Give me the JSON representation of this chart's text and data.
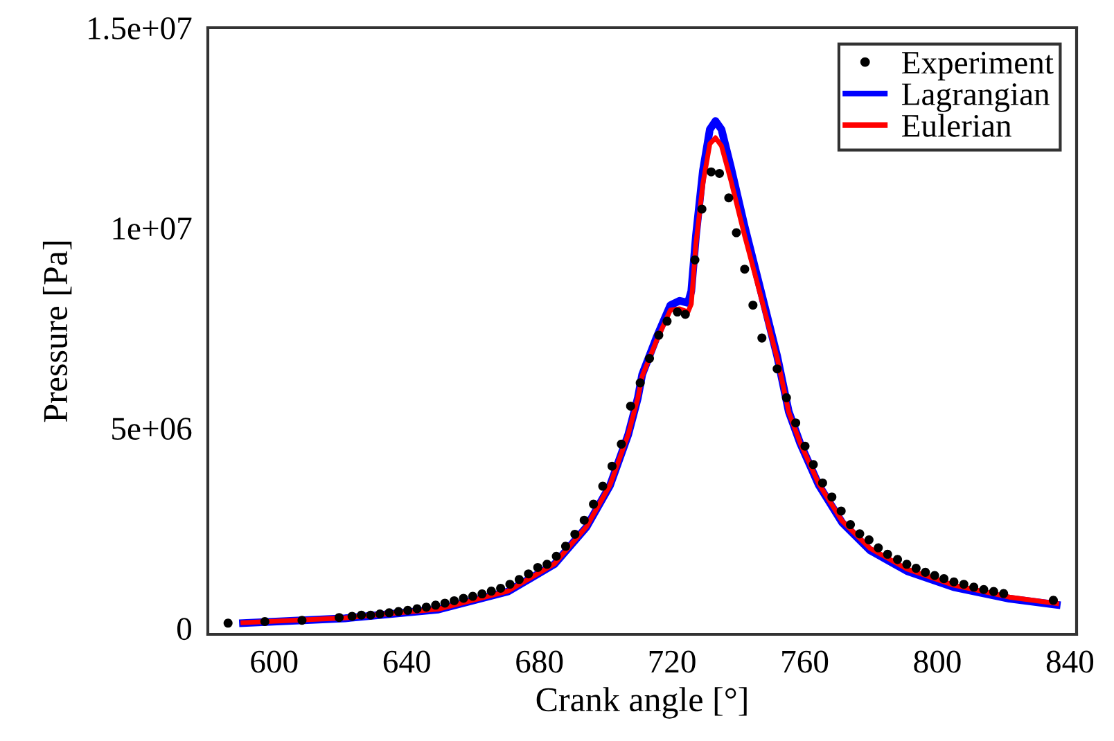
{
  "chart_data": {
    "type": "line",
    "xlabel": "Crank angle [°]",
    "ylabel": "Pressure [Pa]",
    "xlim": [
      580,
      842
    ],
    "xticks": [
      600,
      640,
      680,
      720,
      760,
      800,
      840
    ],
    "ylim": [
      -150000,
      15000000
    ],
    "yticks": [
      {
        "value": 0,
        "label": "0"
      },
      {
        "value": 5000000,
        "label": "5e+06"
      },
      {
        "value": 10000000,
        "label": "1e+07"
      },
      {
        "value": 15000000,
        "label": "1.5e+07"
      }
    ],
    "grid": false,
    "legend": "top right",
    "series": [
      {
        "name": "Experiment",
        "type": "scatter",
        "color": "#000000",
        "marker": "circle",
        "x": [
          586.1,
          597.2,
          608.4,
          619.6,
          623.5,
          626.3,
          629.1,
          631.9,
          634.7,
          637.5,
          640.3,
          643.1,
          645.9,
          648.7,
          651.5,
          654.3,
          657.1,
          659.9,
          662.7,
          665.5,
          668.3,
          671.1,
          673.9,
          676.7,
          679.5,
          682.3,
          685.1,
          687.9,
          690.7,
          693.5,
          696.3,
          699.1,
          701.9,
          704.7,
          707.5,
          710.4,
          713.2,
          716.0,
          718.5,
          721.6,
          724.0,
          726.9,
          729.0,
          731.8,
          734.3,
          737.1,
          739.4,
          741.9,
          744.4,
          747.1,
          751.7,
          754.5,
          757.3,
          760.1,
          762.6,
          765.4,
          768.2,
          771.0,
          773.8,
          776.6,
          779.4,
          782.2,
          785.0,
          788.0,
          790.8,
          793.6,
          796.4,
          799.2,
          802.0,
          805.0,
          808.0,
          811.0,
          814.0,
          817.0,
          820.0,
          835.0
        ],
        "values": [
          130000,
          170000,
          200000,
          270000,
          300000,
          330000,
          330000,
          360000,
          390000,
          420000,
          450000,
          490000,
          530000,
          580000,
          630000,
          690000,
          750000,
          800000,
          860000,
          930000,
          1000000,
          1100000,
          1220000,
          1360000,
          1520000,
          1600000,
          1800000,
          2050000,
          2350000,
          2700000,
          3100000,
          3550000,
          4050000,
          4600000,
          5550000,
          6130000,
          6740000,
          7320000,
          7670000,
          7900000,
          7840000,
          9200000,
          10470000,
          11400000,
          11360000,
          10750000,
          9880000,
          8970000,
          8070000,
          7250000,
          6480000,
          5760000,
          5130000,
          4550000,
          4090000,
          3630000,
          3280000,
          2930000,
          2590000,
          2360000,
          2210000,
          2010000,
          1850000,
          1720000,
          1600000,
          1500000,
          1400000,
          1320000,
          1240000,
          1160000,
          1100000,
          1030000,
          970000,
          920000,
          870000,
          700000
        ]
      },
      {
        "name": "Lagrangian",
        "color": "#0000ff",
        "marker": "none",
        "line_style": "solid",
        "x": [
          590.6,
          621.4,
          649.5,
          670.5,
          684.5,
          694.2,
          701.3,
          706.8,
          709.7,
          711.0,
          715.3,
          719.5,
          722.3,
          724.8,
          725.8,
          727.2,
          729.3,
          731.4,
          733.1,
          734.9,
          737.7,
          741.9,
          746.1,
          751.7,
          755.2,
          758.7,
          764.3,
          771.3,
          779.7,
          790.9,
          804.9,
          821.7,
          836.0
        ],
        "values": [
          130000,
          250000,
          470000,
          920000,
          1600000,
          2530000,
          3570000,
          4840000,
          5760000,
          6340000,
          7260000,
          8070000,
          8180000,
          8130000,
          8420000,
          9800000,
          11420000,
          12460000,
          12670000,
          12460000,
          11530000,
          10030000,
          8650000,
          6800000,
          5410000,
          4610000,
          3570000,
          2640000,
          1950000,
          1430000,
          1030000,
          740000,
          590000
        ]
      },
      {
        "name": "Eulerian",
        "color": "#ff0000",
        "marker": "none",
        "line_style": "solid",
        "x": [
          590.6,
          621.4,
          649.5,
          670.5,
          684.5,
          694.2,
          701.3,
          706.8,
          709.7,
          711.0,
          715.3,
          719.5,
          722.3,
          724.8,
          725.8,
          727.2,
          729.3,
          731.4,
          733.1,
          734.9,
          737.7,
          741.9,
          746.1,
          751.7,
          755.2,
          758.7,
          764.3,
          771.3,
          779.7,
          790.9,
          804.9,
          821.7,
          836.0
        ],
        "values": [
          140000,
          260000,
          480000,
          930000,
          1610000,
          2540000,
          3580000,
          4850000,
          5760000,
          6300000,
          7180000,
          7950000,
          7980000,
          7900000,
          8100000,
          9600000,
          11100000,
          12100000,
          12250000,
          12050000,
          11200000,
          9800000,
          8500000,
          6750000,
          5400000,
          4620000,
          3600000,
          2680000,
          2000000,
          1480000,
          1080000,
          780000,
          620000
        ]
      }
    ]
  }
}
